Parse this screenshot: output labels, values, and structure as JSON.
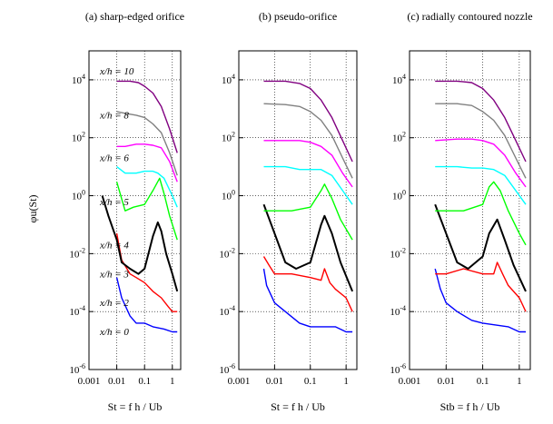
{
  "colors": {
    "x_h_0": "#0000ff",
    "x_h_2": "#ff0000",
    "x_h_3": "#000000",
    "x_h_4": "#00ff00",
    "x_h_5": "#00ffff",
    "x_h_6": "#ff00ff",
    "x_h_8": "#808080",
    "x_h_10": "#800080"
  },
  "ylabel": "φu(St)",
  "chart_data": [
    {
      "type": "line",
      "title": "(a) sharp-edged orifice",
      "xlabel": "St = f h / Ub",
      "ylabel": "φu(St)",
      "xscale": "log",
      "yscale": "log",
      "xlim": [
        0.001,
        2
      ],
      "ylim": [
        1e-06,
        100000.0
      ],
      "x_ticks": [
        "0.001",
        "0.01",
        "0.1",
        "1"
      ],
      "y_ticks": [
        "10-6",
        "10-4",
        "10-2",
        "100",
        "102",
        "104"
      ],
      "grid": "dotted",
      "curve_labels": [
        "x/h = 10",
        "x/h = 8",
        "x/h = 6",
        "x/h = 5",
        "x/h = 4",
        "x/h = 3",
        "x/h = 2",
        "x/h = 0"
      ],
      "series": [
        {
          "key": "x_h_0",
          "x": [
            0.01,
            0.015,
            0.03,
            0.05,
            0.1,
            0.2,
            0.5,
            1,
            1.5
          ],
          "y": [
            0.0015,
            0.0003,
            7e-05,
            4e-05,
            4e-05,
            3e-05,
            2.5e-05,
            2e-05,
            2e-05
          ]
        },
        {
          "key": "x_h_2",
          "x": [
            0.01,
            0.015,
            0.03,
            0.05,
            0.1,
            0.2,
            0.4,
            0.7,
            1,
            1.5
          ],
          "y": [
            0.05,
            0.006,
            0.002,
            0.0015,
            0.001,
            0.0005,
            0.0003,
            0.00015,
            0.0001,
            0.0001
          ]
        },
        {
          "key": "x_h_3",
          "x": [
            0.003,
            0.005,
            0.01,
            0.015,
            0.03,
            0.06,
            0.1,
            0.2,
            0.3,
            0.4,
            0.6,
            1,
            1.5
          ],
          "y": [
            1,
            0.2,
            0.03,
            0.005,
            0.003,
            0.002,
            0.003,
            0.04,
            0.12,
            0.06,
            0.01,
            0.002,
            0.0005
          ]
        },
        {
          "key": "x_h_4",
          "x": [
            0.01,
            0.02,
            0.04,
            0.1,
            0.2,
            0.35,
            0.5,
            0.8,
            1.5
          ],
          "y": [
            3,
            0.3,
            0.4,
            0.5,
            1.5,
            4,
            1.2,
            0.2,
            0.03
          ]
        },
        {
          "key": "x_h_5",
          "x": [
            0.01,
            0.02,
            0.05,
            0.1,
            0.2,
            0.3,
            0.5,
            1,
            1.5
          ],
          "y": [
            10,
            6,
            6,
            7,
            7,
            6,
            4,
            1,
            0.4
          ]
        },
        {
          "key": "x_h_6",
          "x": [
            0.01,
            0.02,
            0.05,
            0.1,
            0.2,
            0.4,
            0.8,
            1.5
          ],
          "y": [
            50,
            50,
            60,
            60,
            55,
            45,
            15,
            3
          ]
        },
        {
          "key": "x_h_8",
          "x": [
            0.01,
            0.02,
            0.05,
            0.1,
            0.2,
            0.4,
            0.8,
            1.5
          ],
          "y": [
            800,
            700,
            600,
            500,
            300,
            150,
            30,
            5
          ]
        },
        {
          "key": "x_h_10",
          "x": [
            0.01,
            0.03,
            0.06,
            0.1,
            0.2,
            0.4,
            0.8,
            1.5
          ],
          "y": [
            9000,
            9000,
            8000,
            6000,
            3500,
            1200,
            200,
            30
          ]
        }
      ]
    },
    {
      "type": "line",
      "title": "(b) pseudo-orifice",
      "xlabel": "St = f h / Ub",
      "xscale": "log",
      "yscale": "log",
      "xlim": [
        0.001,
        2
      ],
      "ylim": [
        1e-06,
        100000.0
      ],
      "x_ticks": [
        "0.001",
        "0.01",
        "0.1",
        "1"
      ],
      "y_ticks": [
        "10-6",
        "10-4",
        "10-2",
        "100",
        "102",
        "104"
      ],
      "grid": "dotted",
      "series": [
        {
          "key": "x_h_0",
          "x": [
            0.005,
            0.006,
            0.01,
            0.02,
            0.05,
            0.1,
            0.5,
            1,
            1.5
          ],
          "y": [
            0.003,
            0.0008,
            0.0002,
            0.0001,
            4e-05,
            3e-05,
            3e-05,
            2e-05,
            2e-05
          ]
        },
        {
          "key": "x_h_2",
          "x": [
            0.005,
            0.007,
            0.01,
            0.03,
            0.1,
            0.2,
            0.25,
            0.35,
            0.5,
            1,
            1.5
          ],
          "y": [
            0.008,
            0.004,
            0.002,
            0.002,
            0.0015,
            0.0012,
            0.003,
            0.001,
            0.0006,
            0.0003,
            0.0001
          ]
        },
        {
          "key": "x_h_3",
          "x": [
            0.005,
            0.01,
            0.02,
            0.04,
            0.1,
            0.2,
            0.25,
            0.4,
            0.7,
            1.5
          ],
          "y": [
            0.5,
            0.05,
            0.005,
            0.003,
            0.005,
            0.1,
            0.2,
            0.05,
            0.005,
            0.0005
          ]
        },
        {
          "key": "x_h_4",
          "x": [
            0.005,
            0.01,
            0.03,
            0.1,
            0.2,
            0.25,
            0.4,
            0.7,
            1.5
          ],
          "y": [
            0.3,
            0.3,
            0.3,
            0.4,
            1.5,
            2.5,
            0.8,
            0.15,
            0.03
          ]
        },
        {
          "key": "x_h_5",
          "x": [
            0.005,
            0.02,
            0.05,
            0.1,
            0.2,
            0.4,
            0.8,
            1.5
          ],
          "y": [
            10,
            10,
            8,
            8,
            8,
            5,
            1.5,
            0.5
          ]
        },
        {
          "key": "x_h_6",
          "x": [
            0.005,
            0.02,
            0.05,
            0.1,
            0.2,
            0.4,
            0.8,
            1.5
          ],
          "y": [
            80,
            80,
            80,
            70,
            50,
            25,
            6,
            2
          ]
        },
        {
          "key": "x_h_8",
          "x": [
            0.005,
            0.02,
            0.05,
            0.1,
            0.2,
            0.4,
            0.8,
            1.5
          ],
          "y": [
            1500,
            1400,
            1200,
            800,
            400,
            120,
            20,
            4
          ]
        },
        {
          "key": "x_h_10",
          "x": [
            0.005,
            0.02,
            0.05,
            0.1,
            0.2,
            0.4,
            0.8,
            1.5
          ],
          "y": [
            9000,
            9000,
            7500,
            5000,
            2000,
            500,
            80,
            15
          ]
        }
      ]
    },
    {
      "type": "line",
      "title": "(c) radially contoured nozzle",
      "xlabel": "Stb = f h / Ub",
      "xscale": "log",
      "yscale": "log",
      "xlim": [
        0.001,
        2
      ],
      "ylim": [
        1e-06,
        100000.0
      ],
      "x_ticks": [
        "0.001",
        "0.01",
        "0.1",
        "1"
      ],
      "y_ticks": [
        "10-6",
        "10-4",
        "10-2",
        "100",
        "102",
        "104"
      ],
      "grid": "dotted",
      "series": [
        {
          "key": "x_h_0",
          "x": [
            0.005,
            0.007,
            0.01,
            0.02,
            0.05,
            0.1,
            0.5,
            1,
            1.5
          ],
          "y": [
            0.003,
            0.0006,
            0.0002,
            0.0001,
            5e-05,
            4e-05,
            3e-05,
            2e-05,
            2e-05
          ]
        },
        {
          "key": "x_h_2",
          "x": [
            0.005,
            0.01,
            0.03,
            0.1,
            0.2,
            0.25,
            0.35,
            0.5,
            1,
            1.5
          ],
          "y": [
            0.002,
            0.002,
            0.003,
            0.002,
            0.002,
            0.005,
            0.002,
            0.0008,
            0.0003,
            0.0001
          ]
        },
        {
          "key": "x_h_3",
          "x": [
            0.005,
            0.01,
            0.02,
            0.04,
            0.1,
            0.15,
            0.25,
            0.4,
            0.7,
            1.5
          ],
          "y": [
            0.5,
            0.05,
            0.005,
            0.003,
            0.008,
            0.05,
            0.15,
            0.03,
            0.004,
            0.0005
          ]
        },
        {
          "key": "x_h_4",
          "x": [
            0.005,
            0.01,
            0.03,
            0.1,
            0.15,
            0.2,
            0.3,
            0.5,
            1,
            1.5
          ],
          "y": [
            0.3,
            0.3,
            0.3,
            0.5,
            2,
            3,
            1.5,
            0.3,
            0.05,
            0.02
          ]
        },
        {
          "key": "x_h_5",
          "x": [
            0.005,
            0.02,
            0.05,
            0.1,
            0.2,
            0.4,
            0.8,
            1.5
          ],
          "y": [
            10,
            10,
            9,
            9,
            8,
            5,
            1.5,
            0.5
          ]
        },
        {
          "key": "x_h_6",
          "x": [
            0.005,
            0.02,
            0.05,
            0.1,
            0.2,
            0.4,
            0.8,
            1.5
          ],
          "y": [
            80,
            90,
            90,
            80,
            60,
            25,
            6,
            2
          ]
        },
        {
          "key": "x_h_8",
          "x": [
            0.005,
            0.02,
            0.05,
            0.1,
            0.2,
            0.4,
            0.8,
            1.5
          ],
          "y": [
            1500,
            1500,
            1300,
            800,
            400,
            120,
            20,
            4
          ]
        },
        {
          "key": "x_h_10",
          "x": [
            0.005,
            0.02,
            0.05,
            0.1,
            0.2,
            0.4,
            0.8,
            1.5
          ],
          "y": [
            9000,
            9000,
            8000,
            5000,
            2000,
            500,
            80,
            15
          ]
        }
      ]
    }
  ]
}
